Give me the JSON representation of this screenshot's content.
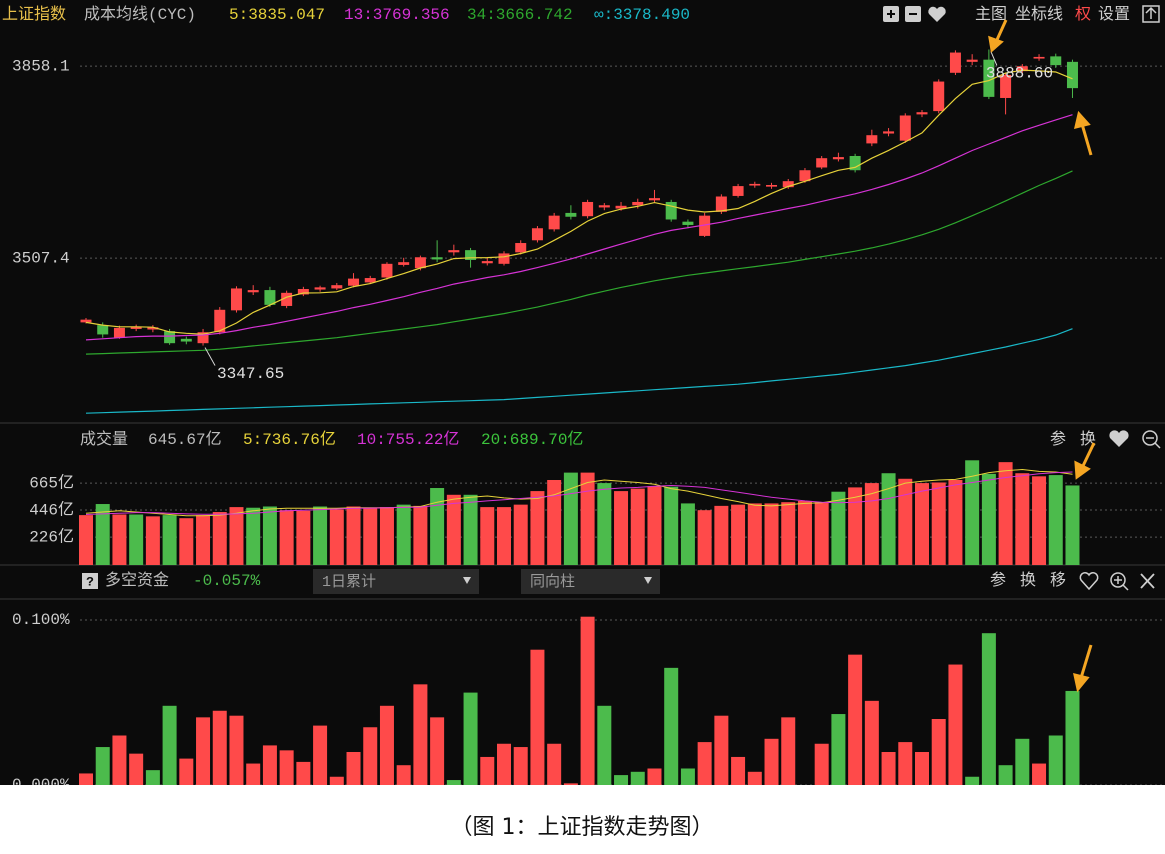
{
  "caption": "（图 1：上证指数走势图）",
  "chart_data": [
    {
      "type": "candlestick",
      "title": "上证指数",
      "subtitle": "成本均线(CYC)",
      "toolbar": [
        "主图",
        "坐标线",
        "权",
        "设置"
      ],
      "up_color": "#ff4a4a",
      "down_color": "#4cbb4c",
      "open": [
        3390,
        3385,
        3362,
        3378,
        3377,
        3374,
        3360,
        3352,
        3372,
        3412,
        3445,
        3449,
        3420,
        3441,
        3450,
        3452,
        3457,
        3463,
        3472,
        3495,
        3489,
        3509,
        3518,
        3522,
        3498,
        3497,
        3518,
        3540,
        3560,
        3590,
        3584,
        3600,
        3598,
        3604,
        3613,
        3610,
        3574,
        3548,
        3592,
        3621,
        3640,
        3638,
        3637,
        3648,
        3673,
        3688,
        3694,
        3717,
        3735,
        3722,
        3770,
        3776,
        3846,
        3866,
        3870,
        3800,
        3849,
        3872,
        3876,
        3866
      ],
      "high": [
        3398,
        3390,
        3384,
        3386,
        3385,
        3378,
        3364,
        3378,
        3418,
        3456,
        3458,
        3455,
        3448,
        3455,
        3457,
        3462,
        3480,
        3475,
        3500,
        3508,
        3512,
        3540,
        3532,
        3526,
        3508,
        3520,
        3540,
        3566,
        3590,
        3604,
        3614,
        3608,
        3610,
        3616,
        3632,
        3614,
        3578,
        3590,
        3624,
        3643,
        3647,
        3645,
        3652,
        3672,
        3694,
        3700,
        3698,
        3742,
        3745,
        3772,
        3778,
        3834,
        3887,
        3880,
        3888.6,
        3846,
        3862,
        3880,
        3881,
        3870
      ],
      "low": [
        3388,
        3362,
        3360,
        3374,
        3372,
        3349,
        3350,
        3347.65,
        3368,
        3408,
        3440,
        3418,
        3416,
        3438,
        3446,
        3449,
        3454,
        3460,
        3468,
        3492,
        3485,
        3500,
        3512,
        3490,
        3494,
        3494,
        3514,
        3536,
        3556,
        3578,
        3580,
        3595,
        3594,
        3598,
        3608,
        3574,
        3562,
        3546,
        3588,
        3618,
        3636,
        3634,
        3634,
        3645,
        3670,
        3684,
        3664,
        3712,
        3730,
        3718,
        3765,
        3772,
        3842,
        3860,
        3798,
        3770,
        3845,
        3868,
        3855,
        3800
      ],
      "close": [
        3395,
        3368,
        3380,
        3382,
        3381,
        3352,
        3355,
        3372,
        3413,
        3452,
        3449,
        3422,
        3444,
        3451,
        3454,
        3458,
        3470,
        3471,
        3497,
        3500,
        3509,
        3505,
        3522,
        3504,
        3502,
        3516,
        3535,
        3562,
        3585,
        3583,
        3610,
        3604,
        3603,
        3610,
        3617,
        3578,
        3568,
        3585,
        3620,
        3639,
        3643,
        3641,
        3648,
        3668,
        3690,
        3692,
        3668,
        3732,
        3739,
        3768,
        3774,
        3830,
        3883,
        3870,
        3802,
        3842,
        3858,
        3875,
        3860,
        3818
      ],
      "series": [
        {
          "name": "5:3835.047",
          "color": "#e6d23a",
          "values": [
            3390,
            3385,
            3382,
            3382,
            3381.2,
            3372.6,
            3370,
            3368.4,
            3374.6,
            3388.8,
            3408.2,
            3421.6,
            3436,
            3443.6,
            3444,
            3445.8,
            3455.4,
            3460.8,
            3470,
            3479.2,
            3489.4,
            3496.4,
            3506.6,
            3508,
            3508.4,
            3509.8,
            3515.8,
            3523.8,
            3540,
            3556.2,
            3575,
            3588.8,
            3597,
            3602,
            3608.8,
            3602.4,
            3595.2,
            3591.6,
            3593.6,
            3598,
            3611,
            3625.6,
            3638.2,
            3647.8,
            3658,
            3667.8,
            3673.2,
            3690,
            3704.2,
            3719.8,
            3736.2,
            3768.6,
            3798.8,
            3825,
            3831.8,
            3845.4,
            3851,
            3849.4,
            3847.4,
            3835.047
          ]
        },
        {
          "name": "13:3769.356",
          "color": "#d633d6",
          "values": [
            3358,
            3360,
            3362,
            3364,
            3365,
            3365,
            3366,
            3367,
            3370,
            3375,
            3381,
            3386,
            3392,
            3398,
            3404,
            3410,
            3417,
            3423,
            3430,
            3437,
            3445,
            3452,
            3460,
            3466,
            3472,
            3477,
            3483,
            3490,
            3498,
            3506,
            3515,
            3524,
            3533,
            3542,
            3551,
            3558,
            3563,
            3568,
            3573,
            3580,
            3586,
            3592,
            3598,
            3604,
            3611,
            3618,
            3625,
            3633,
            3642,
            3652,
            3663,
            3676,
            3690,
            3704,
            3716,
            3728,
            3740,
            3750,
            3760,
            3769.356
          ]
        },
        {
          "name": "34:3666.742",
          "color": "#2ea82e",
          "values": [
            3332,
            3333,
            3334,
            3335,
            3336,
            3337,
            3338,
            3339,
            3341,
            3344,
            3347,
            3350,
            3353,
            3356,
            3359,
            3362,
            3366,
            3370,
            3374,
            3378,
            3382,
            3386,
            3391,
            3396,
            3401,
            3406,
            3412,
            3418,
            3425,
            3432,
            3440,
            3447,
            3454,
            3460,
            3466,
            3471,
            3476,
            3480,
            3484,
            3488,
            3492,
            3496,
            3500,
            3505,
            3510,
            3515,
            3520,
            3526,
            3533,
            3541,
            3550,
            3560,
            3572,
            3585,
            3598,
            3612,
            3626,
            3640,
            3653,
            3666.742
          ]
        },
        {
          "name": "∞:3378.490",
          "color": "#1ab8c8",
          "values": [
            3224,
            3225,
            3226,
            3227,
            3228,
            3229,
            3230,
            3231,
            3232,
            3233,
            3234,
            3235,
            3236,
            3237,
            3238,
            3239,
            3240,
            3241,
            3242,
            3243,
            3244,
            3245,
            3246,
            3247,
            3248,
            3249,
            3251,
            3253,
            3255,
            3257,
            3259,
            3261,
            3263,
            3265,
            3267,
            3269,
            3271,
            3273,
            3275,
            3277,
            3280,
            3283,
            3286,
            3289,
            3292,
            3295,
            3299,
            3303,
            3307,
            3311,
            3316,
            3321,
            3327,
            3333,
            3339,
            3345,
            3352,
            3359,
            3367,
            3378.49
          ]
        }
      ],
      "annotations": [
        {
          "text": "3347.65",
          "value": 3347.65,
          "index": 7
        },
        {
          "text": "3888.60",
          "value": 3888.6,
          "index": 54
        }
      ],
      "ylim": [
        3208,
        3979
      ],
      "yticks": [
        3858.1,
        3507.4
      ],
      "grid": true
    },
    {
      "type": "bar",
      "title": "成交量",
      "subtitle": "645.67亿",
      "toolbar": [
        "参",
        "换"
      ],
      "values": [
        405,
        495,
        410,
        410,
        395,
        405,
        380,
        405,
        430,
        470,
        465,
        475,
        445,
        440,
        475,
        450,
        475,
        460,
        470,
        490,
        480,
        625,
        570,
        570,
        470,
        470,
        490,
        600,
        690,
        750,
        750,
        665,
        600,
        620,
        640,
        635,
        500,
        445,
        480,
        490,
        500,
        500,
        510,
        520,
        510,
        595,
        630,
        665,
        745,
        700,
        665,
        670,
        690,
        850,
        740,
        835,
        745,
        720,
        730,
        645.67
      ],
      "colors": [
        "#ff4a4a",
        "#4cbb4c",
        "#ff4a4a",
        "#4cbb4c",
        "#ff4a4a",
        "#4cbb4c",
        "#ff4a4a",
        "#ff4a4a",
        "#ff4a4a",
        "#ff4a4a",
        "#4cbb4c",
        "#4cbb4c",
        "#ff4a4a",
        "#ff4a4a",
        "#4cbb4c",
        "#ff4a4a",
        "#ff4a4a",
        "#ff4a4a",
        "#ff4a4a",
        "#4cbb4c",
        "#ff4a4a",
        "#4cbb4c",
        "#ff4a4a",
        "#4cbb4c",
        "#ff4a4a",
        "#ff4a4a",
        "#ff4a4a",
        "#ff4a4a",
        "#ff4a4a",
        "#4cbb4c",
        "#ff4a4a",
        "#4cbb4c",
        "#ff4a4a",
        "#ff4a4a",
        "#ff4a4a",
        "#4cbb4c",
        "#4cbb4c",
        "#ff4a4a",
        "#ff4a4a",
        "#ff4a4a",
        "#ff4a4a",
        "#ff4a4a",
        "#ff4a4a",
        "#ff4a4a",
        "#ff4a4a",
        "#4cbb4c",
        "#ff4a4a",
        "#ff4a4a",
        "#4cbb4c",
        "#ff4a4a",
        "#ff4a4a",
        "#ff4a4a",
        "#ff4a4a",
        "#4cbb4c",
        "#4cbb4c",
        "#ff4a4a",
        "#ff4a4a",
        "#ff4a4a",
        "#4cbb4c",
        "#4cbb4c"
      ],
      "series": [
        {
          "name": "5:736.76亿",
          "color": "#e6d23a",
          "values": [
            420,
            430,
            440,
            430,
            420,
            410,
            400,
            400,
            405,
            420,
            440,
            455,
            460,
            460,
            460,
            460,
            465,
            465,
            465,
            470,
            475,
            510,
            535,
            550,
            560,
            545,
            535,
            540,
            570,
            620,
            670,
            690,
            680,
            670,
            655,
            620,
            600,
            570,
            540,
            515,
            485,
            480,
            490,
            500,
            505,
            525,
            550,
            580,
            620,
            665,
            680,
            690,
            695,
            720,
            750,
            765,
            775,
            760,
            755,
            736.76
          ]
        },
        {
          "name": "10:755.22亿",
          "color": "#d633d6",
          "values": [
            410,
            415,
            420,
            425,
            425,
            420,
            415,
            412,
            412,
            415,
            420,
            430,
            440,
            445,
            450,
            455,
            460,
            462,
            465,
            468,
            470,
            485,
            500,
            510,
            520,
            530,
            540,
            550,
            560,
            580,
            600,
            615,
            625,
            630,
            640,
            645,
            640,
            630,
            610,
            590,
            570,
            550,
            535,
            520,
            510,
            505,
            510,
            520,
            540,
            570,
            600,
            625,
            650,
            670,
            690,
            710,
            725,
            740,
            750,
            755.22
          ]
        }
      ],
      "legend_extra": {
        "name": "20:689.70亿",
        "color": "#3cc43c"
      },
      "ylim": [
        0,
        893
      ],
      "yticks": [
        {
          "value": 665,
          "label": "665亿"
        },
        {
          "value": 446,
          "label": "446亿"
        },
        {
          "value": 226,
          "label": "226亿"
        }
      ],
      "grid": true
    },
    {
      "type": "bar",
      "title": "多空资金",
      "subtitle": "-0.057%",
      "help": "?",
      "controls": [
        "1日累计",
        "同向柱"
      ],
      "toolbar": [
        "参",
        "换",
        "移"
      ],
      "values": [
        0.007,
        0.023,
        0.03,
        0.019,
        0.009,
        0.048,
        0.016,
        0.041,
        0.045,
        0.042,
        0.013,
        0.024,
        0.021,
        0.014,
        0.036,
        0.005,
        0.02,
        0.035,
        0.048,
        0.012,
        0.061,
        0.041,
        0.003,
        0.056,
        0.017,
        0.025,
        0.023,
        0.082,
        0.025,
        0.001,
        0.102,
        0.048,
        0.006,
        0.008,
        0.01,
        0.071,
        0.01,
        0.026,
        0.042,
        0.017,
        0.008,
        0.028,
        0.041,
        0,
        0.025,
        0.043,
        0.079,
        0.051,
        0.02,
        0.026,
        0.02,
        0.04,
        0.073,
        0.005,
        0.092,
        0.012,
        0.028,
        0.013,
        0.03,
        0.057
      ],
      "colors": [
        "#ff4a4a",
        "#4cbb4c",
        "#ff4a4a",
        "#ff4a4a",
        "#4cbb4c",
        "#4cbb4c",
        "#ff4a4a",
        "#ff4a4a",
        "#ff4a4a",
        "#ff4a4a",
        "#ff4a4a",
        "#ff4a4a",
        "#ff4a4a",
        "#ff4a4a",
        "#ff4a4a",
        "#ff4a4a",
        "#ff4a4a",
        "#ff4a4a",
        "#ff4a4a",
        "#ff4a4a",
        "#ff4a4a",
        "#ff4a4a",
        "#4cbb4c",
        "#4cbb4c",
        "#ff4a4a",
        "#ff4a4a",
        "#ff4a4a",
        "#ff4a4a",
        "#ff4a4a",
        "#ff4a4a",
        "#ff4a4a",
        "#4cbb4c",
        "#4cbb4c",
        "#4cbb4c",
        "#ff4a4a",
        "#4cbb4c",
        "#4cbb4c",
        "#ff4a4a",
        "#ff4a4a",
        "#ff4a4a",
        "#ff4a4a",
        "#ff4a4a",
        "#ff4a4a",
        "#ff4a4a",
        "#ff4a4a",
        "#4cbb4c",
        "#ff4a4a",
        "#ff4a4a",
        "#ff4a4a",
        "#ff4a4a",
        "#ff4a4a",
        "#ff4a4a",
        "#ff4a4a",
        "#4cbb4c",
        "#4cbb4c",
        "#4cbb4c",
        "#4cbb4c",
        "#ff4a4a",
        "#4cbb4c",
        "#4cbb4c"
      ],
      "ylim": [
        0,
        0.11
      ],
      "yticks": [
        {
          "value": 0.1,
          "label": "0.100%"
        },
        {
          "value": 0,
          "label": "0.000%"
        }
      ],
      "grid": true
    }
  ]
}
